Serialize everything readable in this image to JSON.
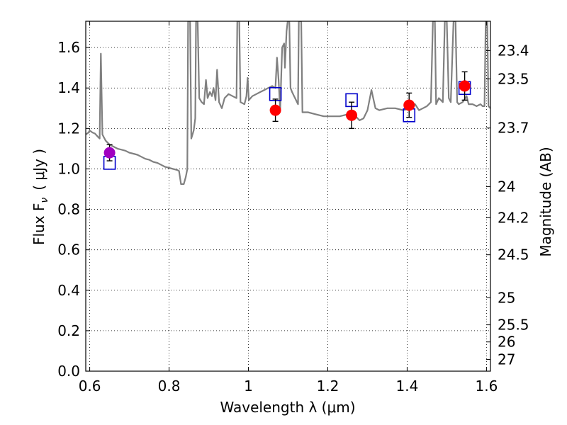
{
  "chart_data": {
    "type": "scatter",
    "xlabel": "Wavelength  λ (μm)",
    "ylabel": "Flux  F",
    "ylabel_sub": "ν",
    "ylabel_units": "( μJy )",
    "right_ylabel": "Magnitude (AB)",
    "xlim": [
      0.59,
      1.61
    ],
    "ylim": [
      0.0,
      1.73
    ],
    "grid": true,
    "x_ticks": [
      {
        "value": 0.6,
        "label": "0.6"
      },
      {
        "value": 0.8,
        "label": "0.8"
      },
      {
        "value": 1.0,
        "label": "1"
      },
      {
        "value": 1.2,
        "label": "1.2"
      },
      {
        "value": 1.4,
        "label": "1.4"
      },
      {
        "value": 1.6,
        "label": "1.6"
      }
    ],
    "y_ticks": [
      {
        "value": 0.0,
        "label": "0.0"
      },
      {
        "value": 0.2,
        "label": "0.2"
      },
      {
        "value": 0.4,
        "label": "0.4"
      },
      {
        "value": 0.6,
        "label": "0.6"
      },
      {
        "value": 0.8,
        "label": "0.8"
      },
      {
        "value": 1.0,
        "label": "1.0"
      },
      {
        "value": 1.2,
        "label": "1.2"
      },
      {
        "value": 1.4,
        "label": "1.4"
      },
      {
        "value": 1.6,
        "label": "1.6"
      }
    ],
    "mag_ticks": [
      {
        "value": 23.4,
        "label": "23.4"
      },
      {
        "value": 23.5,
        "label": "23.5"
      },
      {
        "value": 23.7,
        "label": "23.7"
      },
      {
        "value": 24.0,
        "label": "24"
      },
      {
        "value": 24.2,
        "label": "24.2"
      },
      {
        "value": 24.5,
        "label": "24.5"
      },
      {
        "value": 25.0,
        "label": "25"
      },
      {
        "value": 25.5,
        "label": "25.5"
      },
      {
        "value": 26.0,
        "label": "26"
      },
      {
        "value": 27.0,
        "label": "27"
      }
    ],
    "colors": {
      "sed": "#808080",
      "observed": "#ff0000",
      "observed_optical": "#a000c0",
      "model_box": "#0000cc",
      "errorbar": "#000000"
    },
    "sed_spectrum": [
      [
        0.59,
        1.17
      ],
      [
        0.597,
        1.18
      ],
      [
        0.6,
        1.19
      ],
      [
        0.607,
        1.18
      ],
      [
        0.613,
        1.175
      ],
      [
        0.62,
        1.16
      ],
      [
        0.625,
        1.15
      ],
      [
        0.628,
        1.57
      ],
      [
        0.632,
        1.17
      ],
      [
        0.64,
        1.14
      ],
      [
        0.65,
        1.12
      ],
      [
        0.66,
        1.11
      ],
      [
        0.67,
        1.1
      ],
      [
        0.68,
        1.095
      ],
      [
        0.69,
        1.09
      ],
      [
        0.7,
        1.08
      ],
      [
        0.71,
        1.075
      ],
      [
        0.72,
        1.07
      ],
      [
        0.73,
        1.06
      ],
      [
        0.74,
        1.05
      ],
      [
        0.75,
        1.045
      ],
      [
        0.76,
        1.035
      ],
      [
        0.77,
        1.03
      ],
      [
        0.78,
        1.02
      ],
      [
        0.79,
        1.01
      ],
      [
        0.8,
        1.005
      ],
      [
        0.81,
        1.0
      ],
      [
        0.82,
        0.995
      ],
      [
        0.825,
        0.99
      ],
      [
        0.83,
        0.925
      ],
      [
        0.837,
        0.925
      ],
      [
        0.842,
        0.96
      ],
      [
        0.846,
        1.0
      ],
      [
        0.848,
        1.73
      ],
      [
        0.853,
        1.73
      ],
      [
        0.856,
        1.15
      ],
      [
        0.862,
        1.19
      ],
      [
        0.866,
        1.25
      ],
      [
        0.868,
        1.73
      ],
      [
        0.872,
        1.73
      ],
      [
        0.876,
        1.35
      ],
      [
        0.882,
        1.33
      ],
      [
        0.888,
        1.32
      ],
      [
        0.893,
        1.44
      ],
      [
        0.897,
        1.35
      ],
      [
        0.903,
        1.38
      ],
      [
        0.908,
        1.36
      ],
      [
        0.912,
        1.4
      ],
      [
        0.917,
        1.34
      ],
      [
        0.921,
        1.49
      ],
      [
        0.926,
        1.33
      ],
      [
        0.933,
        1.3
      ],
      [
        0.94,
        1.35
      ],
      [
        0.95,
        1.37
      ],
      [
        0.96,
        1.36
      ],
      [
        0.97,
        1.35
      ],
      [
        0.972,
        1.73
      ],
      [
        0.977,
        1.73
      ],
      [
        0.98,
        1.33
      ],
      [
        0.99,
        1.32
      ],
      [
        0.995,
        1.36
      ],
      [
        0.998,
        1.45
      ],
      [
        1.001,
        1.34
      ],
      [
        1.01,
        1.36
      ],
      [
        1.02,
        1.37
      ],
      [
        1.03,
        1.38
      ],
      [
        1.04,
        1.39
      ],
      [
        1.05,
        1.4
      ],
      [
        1.06,
        1.41
      ],
      [
        1.068,
        1.4
      ],
      [
        1.072,
        1.55
      ],
      [
        1.076,
        1.44
      ],
      [
        1.08,
        1.29
      ],
      [
        1.085,
        1.6
      ],
      [
        1.09,
        1.62
      ],
      [
        1.092,
        1.5
      ],
      [
        1.096,
        1.68
      ],
      [
        1.099,
        1.73
      ],
      [
        1.103,
        1.73
      ],
      [
        1.106,
        1.4
      ],
      [
        1.11,
        1.38
      ],
      [
        1.115,
        1.36
      ],
      [
        1.12,
        1.34
      ],
      [
        1.125,
        1.32
      ],
      [
        1.127,
        1.73
      ],
      [
        1.133,
        1.73
      ],
      [
        1.136,
        1.28
      ],
      [
        1.15,
        1.28
      ],
      [
        1.17,
        1.27
      ],
      [
        1.19,
        1.26
      ],
      [
        1.21,
        1.26
      ],
      [
        1.23,
        1.26
      ],
      [
        1.25,
        1.27
      ],
      [
        1.27,
        1.26
      ],
      [
        1.28,
        1.24
      ],
      [
        1.29,
        1.25
      ],
      [
        1.3,
        1.29
      ],
      [
        1.31,
        1.39
      ],
      [
        1.32,
        1.3
      ],
      [
        1.33,
        1.29
      ],
      [
        1.35,
        1.3
      ],
      [
        1.37,
        1.3
      ],
      [
        1.39,
        1.29
      ],
      [
        1.41,
        1.3
      ],
      [
        1.42,
        1.32
      ],
      [
        1.43,
        1.29
      ],
      [
        1.44,
        1.3
      ],
      [
        1.45,
        1.31
      ],
      [
        1.46,
        1.33
      ],
      [
        1.465,
        1.73
      ],
      [
        1.47,
        1.73
      ],
      [
        1.473,
        1.32
      ],
      [
        1.48,
        1.35
      ],
      [
        1.49,
        1.33
      ],
      [
        1.495,
        1.73
      ],
      [
        1.5,
        1.73
      ],
      [
        1.505,
        1.35
      ],
      [
        1.51,
        1.33
      ],
      [
        1.517,
        1.73
      ],
      [
        1.522,
        1.73
      ],
      [
        1.526,
        1.33
      ],
      [
        1.53,
        1.32
      ],
      [
        1.54,
        1.33
      ],
      [
        1.55,
        1.36
      ],
      [
        1.555,
        1.32
      ],
      [
        1.565,
        1.32
      ],
      [
        1.575,
        1.31
      ],
      [
        1.585,
        1.32
      ],
      [
        1.59,
        1.31
      ],
      [
        1.595,
        1.31
      ],
      [
        1.598,
        1.73
      ],
      [
        1.602,
        1.73
      ],
      [
        1.605,
        1.31
      ],
      [
        1.61,
        1.3
      ]
    ],
    "observed_points": [
      {
        "x": 0.65,
        "y": 1.08,
        "err": 0.04,
        "band": "optical"
      },
      {
        "x": 1.068,
        "y": 1.29,
        "err": 0.055,
        "band": "nir"
      },
      {
        "x": 1.26,
        "y": 1.265,
        "err": 0.065,
        "band": "nir"
      },
      {
        "x": 1.405,
        "y": 1.315,
        "err": 0.06,
        "band": "nir"
      },
      {
        "x": 1.545,
        "y": 1.41,
        "err": 0.07,
        "band": "nir"
      }
    ],
    "model_points": [
      {
        "x": 0.65,
        "y": 1.03
      },
      {
        "x": 1.068,
        "y": 1.37
      },
      {
        "x": 1.26,
        "y": 1.34
      },
      {
        "x": 1.405,
        "y": 1.265
      },
      {
        "x": 1.545,
        "y": 1.4
      }
    ]
  }
}
